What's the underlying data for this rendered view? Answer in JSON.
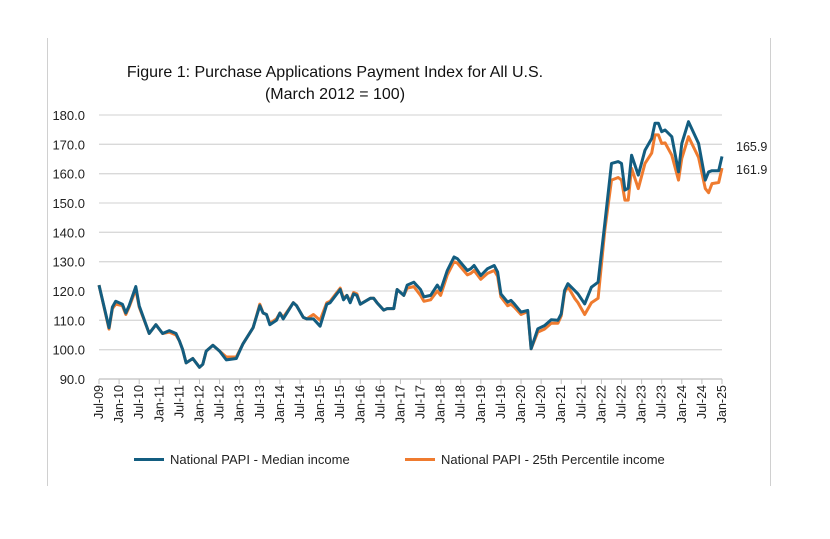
{
  "chart_data": {
    "type": "line",
    "title": "Figure 1: Purchase Applications Payment Index for All U.S.",
    "subtitle": "(March 2012 = 100)",
    "xlabel": "",
    "ylabel": "",
    "ylim": [
      90,
      180
    ],
    "yticks": [
      "90.0",
      "100.0",
      "110.0",
      "120.0",
      "130.0",
      "140.0",
      "150.0",
      "160.0",
      "170.0",
      "180.0"
    ],
    "xtick_labels": [
      "Jul-09",
      "Jan-10",
      "Jul-10",
      "Jan-11",
      "Jul-11",
      "Jan-12",
      "Jul-12",
      "Jan-13",
      "Jul-13",
      "Jan-14",
      "Jul-14",
      "Jan-15",
      "Jul-15",
      "Jan-16",
      "Jul-16",
      "Jan-17",
      "Jul-17",
      "Jan-18",
      "Jul-18",
      "Jan-19",
      "Jul-19",
      "Jan-20",
      "Jul-20",
      "Jan-21",
      "Jul-21",
      "Jan-22",
      "Jul-22",
      "Jan-23",
      "Jul-23",
      "Jan-24",
      "Jul-24",
      "Jan-25"
    ],
    "grid": "horizontal",
    "legend_position": "bottom",
    "end_labels": [
      "165.9",
      "161.9"
    ],
    "series": [
      {
        "name": "National PAPI - Median income",
        "color": "#135d80"
      },
      {
        "name": "National PAPI - 25th Percentile income",
        "color": "#ef7b2f"
      }
    ],
    "points": [
      [
        "2009-07",
        122,
        122
      ],
      [
        "2009-10",
        107.5,
        107
      ],
      [
        "2009-11",
        114.5,
        114
      ],
      [
        "2009-12",
        116.5,
        115.5
      ],
      [
        "2010-02",
        115.5,
        115
      ],
      [
        "2010-03",
        112.5,
        112
      ],
      [
        "2010-04",
        115,
        114.5
      ],
      [
        "2010-06",
        121.5,
        120.5
      ],
      [
        "2010-07",
        115,
        114.5
      ],
      [
        "2010-10",
        105.5,
        105.5
      ],
      [
        "2010-12",
        108.5,
        108.5
      ],
      [
        "2011-02",
        105.5,
        105.5
      ],
      [
        "2011-04",
        106.5,
        106
      ],
      [
        "2011-06",
        105.5,
        105
      ],
      [
        "2011-07",
        103,
        103
      ],
      [
        "2011-08",
        100,
        100
      ],
      [
        "2011-09",
        95.5,
        95.5
      ],
      [
        "2011-11",
        97,
        97
      ],
      [
        "2012-01",
        94,
        94
      ],
      [
        "2012-02",
        95,
        95
      ],
      [
        "2012-03",
        99.5,
        99.5
      ],
      [
        "2012-05",
        101.5,
        101.5
      ],
      [
        "2012-07",
        99.5,
        99.5
      ],
      [
        "2012-09",
        96.5,
        97.5
      ],
      [
        "2012-12",
        97,
        97.5
      ],
      [
        "2013-02",
        102,
        102
      ],
      [
        "2013-05",
        107.5,
        107.5
      ],
      [
        "2013-07",
        115,
        115.5
      ],
      [
        "2013-08",
        112.5,
        112.5
      ],
      [
        "2013-09",
        112,
        112
      ],
      [
        "2013-10",
        108.5,
        109
      ],
      [
        "2013-12",
        110,
        110.5
      ],
      [
        "2014-01",
        112.5,
        112.5
      ],
      [
        "2014-02",
        110.5,
        111
      ],
      [
        "2014-05",
        116,
        116
      ],
      [
        "2014-06",
        115,
        115
      ],
      [
        "2014-08",
        111,
        111
      ],
      [
        "2014-09",
        110.5,
        110.5
      ],
      [
        "2014-11",
        110.5,
        112
      ],
      [
        "2015-01",
        108,
        110
      ],
      [
        "2015-03",
        115.5,
        116
      ],
      [
        "2015-04",
        116,
        116.5
      ],
      [
        "2015-07",
        120.5,
        121
      ],
      [
        "2015-08",
        117,
        117.5
      ],
      [
        "2015-09",
        118.5,
        118.5
      ],
      [
        "2015-10",
        116,
        116.5
      ],
      [
        "2015-11",
        119,
        119.5
      ],
      [
        "2015-12",
        118.5,
        119
      ],
      [
        "2016-01",
        115.5,
        115.5
      ],
      [
        "2016-04",
        117.5,
        117.5
      ],
      [
        "2016-05",
        117.5,
        117.5
      ],
      [
        "2016-06",
        116,
        116
      ],
      [
        "2016-08",
        113.5,
        113.5
      ],
      [
        "2016-09",
        114,
        114
      ],
      [
        "2016-11",
        114,
        114
      ],
      [
        "2016-12",
        120.5,
        120.5
      ],
      [
        "2017-02",
        118.5,
        118.5
      ],
      [
        "2017-03",
        122,
        121
      ],
      [
        "2017-05",
        123,
        121.5
      ],
      [
        "2017-07",
        120.5,
        118.5
      ],
      [
        "2017-08",
        118,
        116.5
      ],
      [
        "2017-10",
        118.5,
        117
      ],
      [
        "2017-12",
        122,
        120
      ],
      [
        "2018-01",
        120.2,
        118.5
      ],
      [
        "2018-03",
        127,
        125.5
      ],
      [
        "2018-05",
        131.6,
        130
      ],
      [
        "2018-06",
        131,
        129.5
      ],
      [
        "2018-09",
        127,
        125.5
      ],
      [
        "2018-10",
        127.6,
        126
      ],
      [
        "2018-11",
        128.7,
        127
      ],
      [
        "2019-01",
        125.3,
        124
      ],
      [
        "2019-03",
        127.6,
        126
      ],
      [
        "2019-05",
        128.7,
        127
      ],
      [
        "2019-06",
        126.5,
        125
      ],
      [
        "2019-07",
        119,
        118
      ],
      [
        "2019-09",
        116.2,
        115
      ],
      [
        "2019-10",
        116.8,
        115.5
      ],
      [
        "2019-11",
        115.6,
        114.5
      ],
      [
        "2020-01",
        112.8,
        112
      ],
      [
        "2020-03",
        113.4,
        113
      ],
      [
        "2020-04",
        100.3,
        100.3
      ],
      [
        "2020-06",
        107.1,
        106
      ],
      [
        "2020-08",
        108.2,
        107
      ],
      [
        "2020-10",
        110.2,
        109
      ],
      [
        "2020-12",
        110,
        109
      ],
      [
        "2021-01",
        112.2,
        111.5
      ],
      [
        "2021-02",
        120.2,
        119.5
      ],
      [
        "2021-03",
        122.5,
        121.5
      ],
      [
        "2021-05",
        120.2,
        117.5
      ],
      [
        "2021-06",
        119,
        116
      ],
      [
        "2021-08",
        115.6,
        112
      ],
      [
        "2021-10",
        121.3,
        116
      ],
      [
        "2021-12",
        123,
        117.5
      ],
      [
        "2022-02",
        143,
        140.7
      ],
      [
        "2022-04",
        163.5,
        157.8
      ],
      [
        "2022-06",
        164.1,
        158.7
      ],
      [
        "2022-07",
        163.5,
        157.8
      ],
      [
        "2022-08",
        154.4,
        151
      ],
      [
        "2022-09",
        155,
        151
      ],
      [
        "2022-10",
        166.3,
        161.8
      ],
      [
        "2022-12",
        159.5,
        154.9
      ],
      [
        "2023-02",
        168,
        163.5
      ],
      [
        "2023-04",
        172,
        167
      ],
      [
        "2023-05",
        177.2,
        173.2
      ],
      [
        "2023-06",
        177.2,
        173.2
      ],
      [
        "2023-07",
        174.3,
        170.3
      ],
      [
        "2023-08",
        174.9,
        170.5
      ],
      [
        "2023-10",
        172.6,
        166.3
      ],
      [
        "2023-12",
        160.6,
        157.8
      ],
      [
        "2024-01",
        170.3,
        165.2
      ],
      [
        "2024-03",
        177.7,
        172.6
      ],
      [
        "2024-06",
        170.3,
        165.5
      ],
      [
        "2024-08",
        157.8,
        154.9
      ],
      [
        "2024-09",
        160.6,
        153.5
      ],
      [
        "2024-10",
        161,
        156.6
      ],
      [
        "2024-12",
        161,
        157
      ],
      [
        "2025-01",
        165.9,
        161.9
      ]
    ]
  }
}
